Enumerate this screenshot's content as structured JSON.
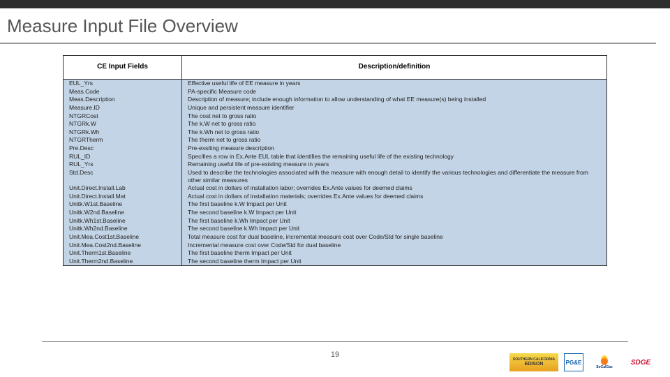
{
  "title": "Measure Input File Overview",
  "page_number": "19",
  "table": {
    "header_left": "CE Input Fields",
    "header_right": "Description/definition",
    "row_bg": "#c3d4e6",
    "rows": [
      {
        "f": "EUL_Yrs",
        "d": "Effective useful life of EE measure in years"
      },
      {
        "f": "Meas.Code",
        "d": "PA-specific Measure code"
      },
      {
        "f": "Meas.Description",
        "d": "Description of measure; include enough information to allow understanding of what EE measure(s) being installed"
      },
      {
        "f": "Measure.ID",
        "d": "Unique and persistent measure identifier"
      },
      {
        "f": "NTGRCost",
        "d": "The cost net to gross ratio"
      },
      {
        "f": "NTGRk.W",
        "d": "The k.W net to gross ratio"
      },
      {
        "f": "NTGRk.Wh",
        "d": "The k.Wh net to gross ratio"
      },
      {
        "f": "NTGRTherm",
        "d": "The therm net to gross ratio"
      },
      {
        "f": "Pre.Desc",
        "d": "Pre-exsiting measure description"
      },
      {
        "f": "RUL_ID",
        "d": "Specifies a row in Ex.Ante EUL table that identifies the remaining useful life of the existing technology"
      },
      {
        "f": "RUL_Yrs",
        "d": "Remaining useful life of pre-existing measure in years"
      },
      {
        "f": "Std.Desc",
        "d": "Used to describe the technologies associated with the measure with enough detail to identify the various technologies and differentiate the measure from other similar measures"
      },
      {
        "f": "Unit.Direct.Install.Lab",
        "d": "Actual cost in dollars of installation labor; overrides Ex.Ante values for deemed claims"
      },
      {
        "f": "Unit.Direct.Install.Mat",
        "d": "Actual cost in dollars of installation materials; overrides Ex.Ante values for deemed claims"
      },
      {
        "f": "Unitk.W1st.Baseline",
        "d": "The first baseline k.W Impact per Unit"
      },
      {
        "f": "Unitk.W2nd.Baseline",
        "d": "The second baseline k.W Impact per Unit"
      },
      {
        "f": "Unitk.Wh1st.Baseline",
        "d": "The first baseline k.Wh Impact per Unit"
      },
      {
        "f": "Unitk.Wh2nd.Baseline",
        "d": "The second baseline k.Wh Impact per Unit"
      },
      {
        "f": "Unit.Mea.Cost1st.Baseline",
        "d": "Total measure cost for dual baseline, incremental measure cost over Code/Std for single baseline"
      },
      {
        "f": "Unit.Mea.Cost2nd.Baseline",
        "d": "Incremental measure cost over Code/Std for dual baseline"
      },
      {
        "f": "Unit.Therm1st.Baseline",
        "d": "The first baseline therm Impact per Unit"
      },
      {
        "f": "Unit.Therm2nd.Baseline",
        "d": "The second baseline therm Impact per Unit"
      }
    ]
  },
  "logos": {
    "sce_top": "SOUTHERN CALIFORNIA",
    "sce_bottom": "EDISON",
    "pge": "PG&E",
    "scg": "SoCalGas",
    "sdge": "SDGE"
  }
}
